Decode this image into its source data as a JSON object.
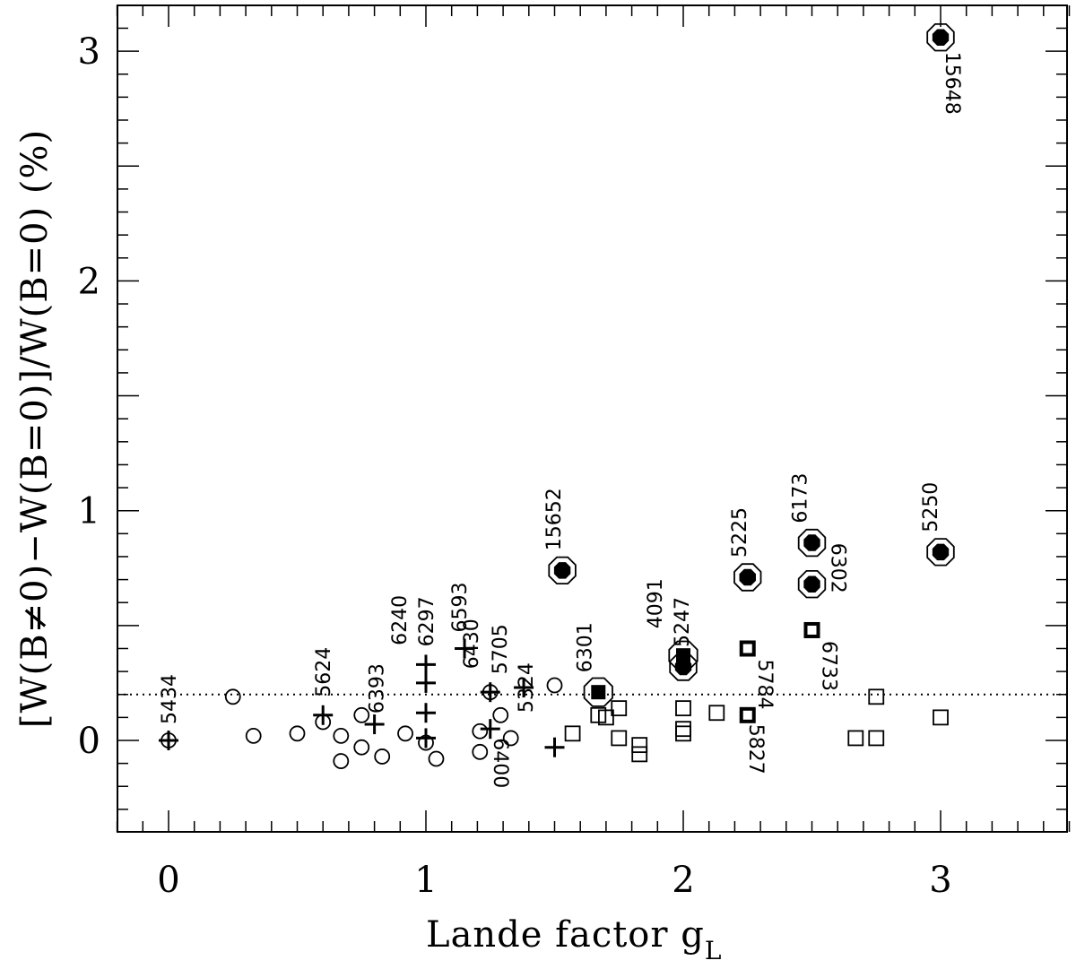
{
  "chart_data": {
    "type": "scatter",
    "xlabel": "Lande factor g",
    "xlabel_subscript": "L",
    "ylabel": "[W(B≠0)−W(B=0)]/W(B=0)  (%)",
    "xlim": [
      -0.2,
      3.5
    ],
    "ylim": [
      -0.4,
      3.2
    ],
    "x_ticks": [
      0,
      1,
      2,
      3
    ],
    "y_ticks": [
      0,
      1,
      2,
      3
    ],
    "x_tick_labels": [
      "0",
      "1",
      "2",
      "3"
    ],
    "y_tick_labels": [
      "0",
      "1",
      "2",
      "3"
    ],
    "x_minor_step": 0.1,
    "y_minor_step": 0.1,
    "grid": false,
    "reference_line": {
      "y": 0.2,
      "style": "dotted"
    },
    "series": [
      {
        "marker": "open-circle",
        "points": [
          {
            "x": 0.25,
            "y": 0.19
          },
          {
            "x": 0.33,
            "y": 0.02
          },
          {
            "x": 0.5,
            "y": 0.03
          },
          {
            "x": 0.6,
            "y": 0.08
          },
          {
            "x": 0.67,
            "y": -0.09
          },
          {
            "x": 0.67,
            "y": 0.02
          },
          {
            "x": 0.75,
            "y": -0.03
          },
          {
            "x": 0.75,
            "y": 0.11
          },
          {
            "x": 0.83,
            "y": -0.07
          },
          {
            "x": 0.92,
            "y": 0.03
          },
          {
            "x": 1.0,
            "y": -0.01
          },
          {
            "x": 1.04,
            "y": -0.08
          },
          {
            "x": 1.21,
            "y": -0.05
          },
          {
            "x": 1.21,
            "y": 0.04
          },
          {
            "x": 1.29,
            "y": 0.11
          },
          {
            "x": 1.33,
            "y": 0.01
          },
          {
            "x": 1.5,
            "y": 0.24
          }
        ]
      },
      {
        "marker": "plus",
        "points": [
          {
            "x": 0.0,
            "y": 0.0,
            "label": "5434"
          },
          {
            "x": 0.6,
            "y": 0.11,
            "label": "5624"
          },
          {
            "x": 0.8,
            "y": 0.07,
            "label": "6393"
          },
          {
            "x": 1.0,
            "y": 0.01
          },
          {
            "x": 1.0,
            "y": 0.12
          },
          {
            "x": 1.0,
            "y": 0.25,
            "label": "6240"
          },
          {
            "x": 1.0,
            "y": 0.33,
            "label": "6297"
          },
          {
            "x": 1.15,
            "y": 0.4,
            "label": "6593"
          },
          {
            "x": 1.25,
            "y": 0.05,
            "label": "6400"
          },
          {
            "x": 1.25,
            "y": 0.21,
            "label": "6430"
          },
          {
            "x": 1.38,
            "y": 0.23,
            "label": "5324"
          },
          {
            "x": 1.5,
            "y": -0.03
          }
        ]
      },
      {
        "marker": "open-square",
        "points": [
          {
            "x": 1.57,
            "y": 0.03
          },
          {
            "x": 1.67,
            "y": 0.11
          },
          {
            "x": 1.7,
            "y": 0.1
          },
          {
            "x": 1.75,
            "y": 0.01
          },
          {
            "x": 1.75,
            "y": 0.14
          },
          {
            "x": 1.83,
            "y": -0.02
          },
          {
            "x": 1.83,
            "y": -0.06
          },
          {
            "x": 2.0,
            "y": 0.03
          },
          {
            "x": 2.0,
            "y": 0.05
          },
          {
            "x": 2.0,
            "y": 0.14
          },
          {
            "x": 2.13,
            "y": 0.12
          },
          {
            "x": 2.67,
            "y": 0.01
          },
          {
            "x": 2.75,
            "y": 0.01
          },
          {
            "x": 2.75,
            "y": 0.19
          },
          {
            "x": 3.0,
            "y": 0.1
          }
        ]
      },
      {
        "marker": "bold-square",
        "points": [
          {
            "x": 2.25,
            "y": 0.4,
            "label": "5784"
          },
          {
            "x": 2.25,
            "y": 0.11,
            "label": "5827"
          },
          {
            "x": 2.5,
            "y": 0.48,
            "label": "6733"
          }
        ]
      },
      {
        "marker": "filled-square-circled",
        "points": [
          {
            "x": 1.67,
            "y": 0.21,
            "label": "6301"
          },
          {
            "x": 2.0,
            "y": 0.37,
            "label": "4091"
          }
        ]
      },
      {
        "marker": "filled-circle-circled",
        "points": [
          {
            "x": 1.53,
            "y": 0.74,
            "label": "15652"
          },
          {
            "x": 2.0,
            "y": 0.32,
            "label": "5247"
          },
          {
            "x": 2.25,
            "y": 0.71,
            "label": "5225"
          },
          {
            "x": 2.5,
            "y": 0.86,
            "label": "6173"
          },
          {
            "x": 2.5,
            "y": 0.68,
            "label": "6302"
          },
          {
            "x": 3.0,
            "y": 0.82,
            "label": "5250"
          },
          {
            "x": 3.0,
            "y": 3.06,
            "label": "15648"
          }
        ]
      },
      {
        "marker": "circled-plus",
        "points": [
          {
            "x": 0.0,
            "y": 0.0
          },
          {
            "x": 1.25,
            "y": 0.21,
            "label": "5705"
          }
        ]
      }
    ]
  }
}
